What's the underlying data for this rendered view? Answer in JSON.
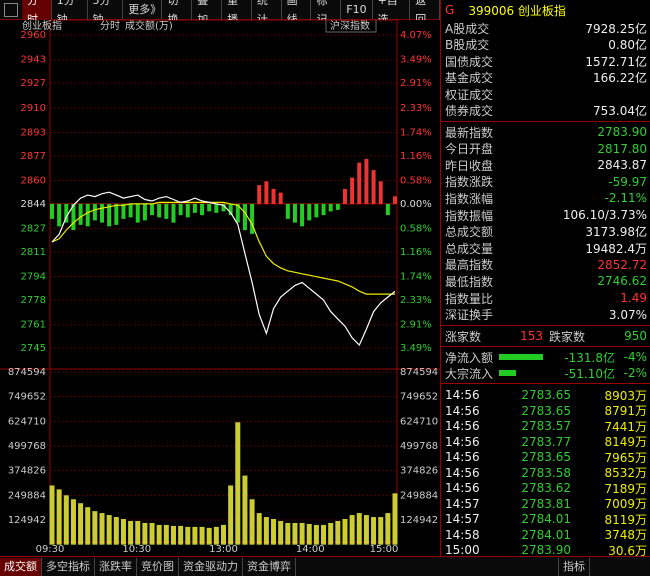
{
  "toolbar": {
    "buttons": [
      "分时",
      "1分钟",
      "5分钟",
      "更多》",
      "切换",
      "叠加",
      "重播",
      "统计",
      "画线",
      "标记",
      "F10",
      "+自选",
      "返回"
    ]
  },
  "chart": {
    "title": "创业板指",
    "mode": "分时",
    "indicator": "成交额(万)",
    "compare": "沪深指数",
    "price_ticks": [
      2960,
      2943,
      2927,
      2910,
      2893,
      2877,
      2860,
      2844,
      2827,
      2811,
      2794,
      2778,
      2761,
      2745
    ],
    "pct_ticks": [
      "4.07%",
      "3.49%",
      "2.91%",
      "2.33%",
      "1.74%",
      "1.16%",
      "0.58%",
      "0.00%",
      "0.58%",
      "1.16%",
      "1.74%",
      "2.33%",
      "2.91%",
      "3.49%"
    ],
    "volume_ticks": [
      874594,
      749652,
      624710,
      499768,
      374826,
      249884,
      124942
    ],
    "time_ticks": [
      "09:30",
      "10:30",
      "13:00",
      "14:00",
      "15:00"
    ],
    "price_series": [
      2817.8,
      2823,
      2835,
      2843,
      2848,
      2850,
      2849,
      2851,
      2852,
      2850,
      2848,
      2849,
      2850,
      2847,
      2846,
      2848,
      2849,
      2847,
      2845,
      2846,
      2848,
      2846,
      2845,
      2844,
      2843,
      2838,
      2830,
      2810,
      2790,
      2768,
      2755,
      2772,
      2780,
      2784,
      2788,
      2790,
      2786,
      2782,
      2778,
      2770,
      2765,
      2760,
      2752,
      2747,
      2758,
      2770,
      2776,
      2780,
      2783.9
    ],
    "avg_series": [
      2817.8,
      2820,
      2826,
      2831,
      2835,
      2838,
      2840,
      2841,
      2842,
      2843,
      2843,
      2844,
      2844,
      2844,
      2844,
      2845,
      2845,
      2845,
      2845,
      2845,
      2845,
      2845,
      2845,
      2845,
      2845,
      2844,
      2843,
      2838,
      2830,
      2818,
      2808,
      2803,
      2800,
      2798,
      2797,
      2796,
      2795,
      2794,
      2793,
      2792,
      2791,
      2789,
      2787,
      2784,
      2782,
      2782,
      2782,
      2782,
      2782
    ],
    "breadth_bars": [
      -20,
      -30,
      -25,
      -35,
      -28,
      -30,
      -22,
      -25,
      -30,
      -28,
      -20,
      -18,
      -25,
      -22,
      -15,
      -18,
      -20,
      -25,
      -15,
      -18,
      -12,
      -15,
      -10,
      -12,
      -10,
      -15,
      -25,
      -35,
      -40,
      25,
      30,
      20,
      15,
      -20,
      -25,
      -30,
      -22,
      -18,
      -15,
      -10,
      -8,
      20,
      35,
      55,
      60,
      45,
      30,
      -15,
      10
    ],
    "volume": [
      300000,
      280000,
      250000,
      230000,
      210000,
      190000,
      170000,
      160000,
      150000,
      140000,
      130000,
      120000,
      120000,
      110000,
      110000,
      100000,
      100000,
      95000,
      95000,
      90000,
      90000,
      90000,
      85000,
      90000,
      100000,
      300000,
      620000,
      350000,
      230000,
      160000,
      140000,
      130000,
      120000,
      110000,
      110000,
      110000,
      105000,
      100000,
      100000,
      110000,
      120000,
      130000,
      150000,
      160000,
      150000,
      140000,
      140000,
      160000,
      260000
    ]
  },
  "panel": {
    "badge": "G",
    "title": "399006 创业板指",
    "turnover_rows": [
      {
        "label": "A股成交",
        "value": "7928.25亿"
      },
      {
        "label": "B股成交",
        "value": "0.80亿"
      },
      {
        "label": "国债成交",
        "value": "1572.71亿"
      },
      {
        "label": "基金成交",
        "value": "166.22亿"
      },
      {
        "label": "权证成交"
      },
      {
        "label": "债券成交",
        "value": "753.04亿"
      }
    ],
    "index_rows": [
      {
        "label": "最新指数",
        "value": "2783.90"
      },
      {
        "label": "今日开盘",
        "value": "2817.80"
      },
      {
        "label": "昨日收盘",
        "value": "2843.87"
      },
      {
        "label": "指数涨跌",
        "value": "-59.97"
      },
      {
        "label": "指数涨幅",
        "value": "-2.11%"
      },
      {
        "label": "指数振幅",
        "value": "106.10/3.73%"
      },
      {
        "label": "总成交额",
        "value": "3173.98亿"
      },
      {
        "label": "总成交量",
        "value": "19482.4万"
      },
      {
        "label": "最高指数",
        "value": "2852.72"
      },
      {
        "label": "最低指数",
        "value": "2746.62"
      },
      {
        "label": "指数量比",
        "value": "1.49"
      },
      {
        "label": "深证换手",
        "value": "3.07%"
      }
    ],
    "breadth": {
      "up_label": "涨家数",
      "up": "153",
      "down_label": "跌家数",
      "down": "950"
    },
    "flows": [
      {
        "label": "净流入额",
        "value": -131.8,
        "value_label": "-131.8亿",
        "pct": "-4%"
      },
      {
        "label": "大宗流入",
        "value": -51.1,
        "value_label": "-51.10亿",
        "pct": "-2%"
      }
    ],
    "trades": [
      [
        "14:56",
        "2783.65",
        "8903万"
      ],
      [
        "14:56",
        "2783.65",
        "8791万"
      ],
      [
        "14:56",
        "2783.57",
        "7441万"
      ],
      [
        "14:56",
        "2783.77",
        "8149万"
      ],
      [
        "14:56",
        "2783.65",
        "7965万"
      ],
      [
        "14:56",
        "2783.58",
        "8532万"
      ],
      [
        "14:56",
        "2783.62",
        "7189万"
      ],
      [
        "14:57",
        "2783.81",
        "7009万"
      ],
      [
        "14:57",
        "2784.01",
        "8119万"
      ],
      [
        "14:58",
        "2784.01",
        "3748万"
      ],
      [
        "15:00",
        "2783.90",
        "30.6万"
      ]
    ]
  },
  "tabs": {
    "items": [
      "成交额",
      "多空指标",
      "涨跌率",
      "竞价图",
      "资金驱动力",
      "资金博弈"
    ],
    "right": "指标"
  }
}
